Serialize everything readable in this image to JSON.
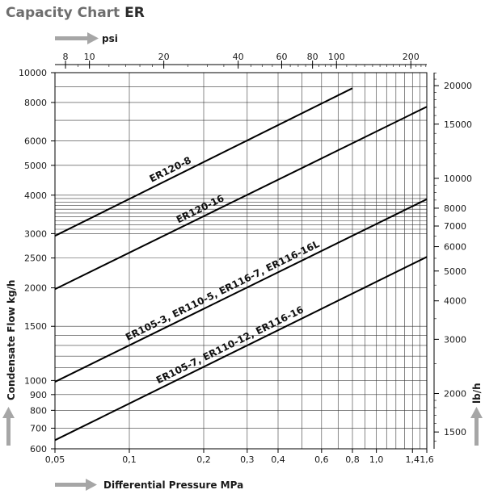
{
  "title": {
    "prefix": "Capacity Chart",
    "suffix": "ER"
  },
  "top_axis": {
    "label": "psi",
    "ticks": [
      {
        "v": 8,
        "label": "8"
      },
      {
        "v": 10,
        "label": "10"
      },
      {
        "v": 20,
        "label": "20"
      },
      {
        "v": 40,
        "label": "40"
      },
      {
        "v": 60,
        "label": "60"
      },
      {
        "v": 80,
        "label": "80"
      },
      {
        "v": 100,
        "label": "100"
      },
      {
        "v": 200,
        "label": "200"
      }
    ]
  },
  "chart_data": {
    "type": "line",
    "title": "Capacity Chart ER",
    "xlabel": "Differential Pressure MPa",
    "ylabel": "Condensate Flow kg/h",
    "y2label": "lb/h",
    "xscale": "log",
    "yscale": "log",
    "xlim": [
      0.05,
      1.6
    ],
    "ylim": [
      600,
      10000
    ],
    "grid": true,
    "x_ticks": [
      {
        "v": 0.05,
        "label": "0,05"
      },
      {
        "v": 0.1,
        "label": "0,1"
      },
      {
        "v": 0.2,
        "label": "0,2"
      },
      {
        "v": 0.3,
        "label": "0,3"
      },
      {
        "v": 0.4,
        "label": "0,4"
      },
      {
        "v": 0.6,
        "label": "0,6"
      },
      {
        "v": 0.8,
        "label": "0,8"
      },
      {
        "v": 1.0,
        "label": "1,0"
      },
      {
        "v": 1.4,
        "label": "1,4"
      },
      {
        "v": 1.6,
        "label": "1,6"
      }
    ],
    "x_gridlines": [
      0.05,
      0.1,
      0.2,
      0.3,
      0.4,
      0.5,
      0.6,
      0.7,
      0.8,
      0.9,
      1.0,
      1.1,
      1.2,
      1.3,
      1.4,
      1.5,
      1.6
    ],
    "y_ticks": [
      {
        "v": 600,
        "label": "600"
      },
      {
        "v": 700,
        "label": "700"
      },
      {
        "v": 800,
        "label": "800"
      },
      {
        "v": 900,
        "label": "900"
      },
      {
        "v": 1000,
        "label": "1000"
      },
      {
        "v": 1500,
        "label": "1500"
      },
      {
        "v": 2000,
        "label": "2000"
      },
      {
        "v": 2500,
        "label": "2500"
      },
      {
        "v": 3000,
        "label": "3000"
      },
      {
        "v": 4000,
        "label": "4000"
      },
      {
        "v": 5000,
        "label": "5000"
      },
      {
        "v": 6000,
        "label": "6000"
      },
      {
        "v": 8000,
        "label": "8000"
      },
      {
        "v": 10000,
        "label": "10000"
      }
    ],
    "y_gridlines": [
      600,
      700,
      800,
      900,
      1000,
      1100,
      1200,
      1300,
      1400,
      1500,
      2000,
      2500,
      3000,
      3100,
      3200,
      3300,
      3400,
      3500,
      3600,
      3700,
      3800,
      3900,
      4000,
      5000,
      6000,
      7000,
      8000,
      9000,
      10000
    ],
    "y2_ticks": [
      {
        "v": 1500,
        "label": "1500"
      },
      {
        "v": 2000,
        "label": "2000"
      },
      {
        "v": 3000,
        "label": "3000"
      },
      {
        "v": 4000,
        "label": "4000"
      },
      {
        "v": 5000,
        "label": "5000"
      },
      {
        "v": 6000,
        "label": "6000"
      },
      {
        "v": 7000,
        "label": "7000"
      },
      {
        "v": 8000,
        "label": "8000"
      },
      {
        "v": 10000,
        "label": "10000"
      },
      {
        "v": 15000,
        "label": "15000"
      },
      {
        "v": 20000,
        "label": "20000"
      }
    ],
    "series": [
      {
        "name": "ER120-8",
        "x": [
          0.05,
          0.8
        ],
        "y": [
          2950,
          8900
        ]
      },
      {
        "name": "ER120-16",
        "x": [
          0.05,
          1.6
        ],
        "y": [
          1980,
          7750
        ]
      },
      {
        "name": "ER105-3, ER110-5, ER116-7, ER116-16L",
        "x": [
          0.05,
          1.6
        ],
        "y": [
          990,
          3880
        ]
      },
      {
        "name": "ER105-7, ER110-12, ER116-16",
        "x": [
          0.05,
          1.6
        ],
        "y": [
          640,
          2520
        ]
      }
    ]
  }
}
